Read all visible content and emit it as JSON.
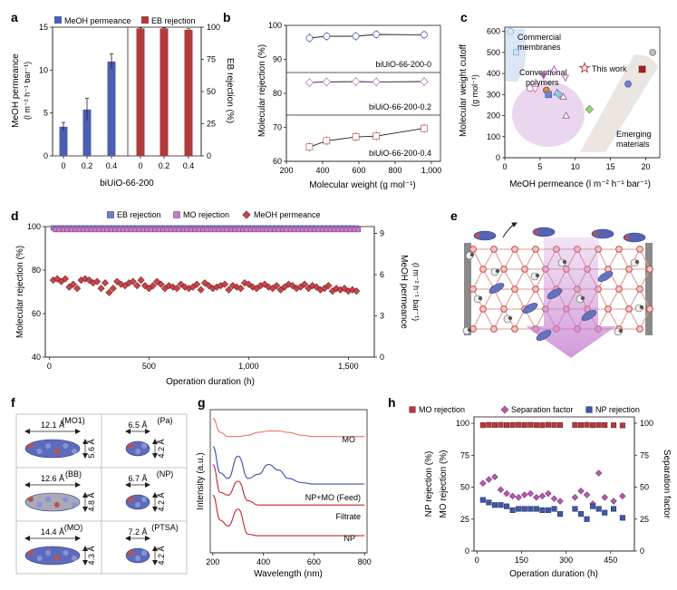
{
  "colors": {
    "blue": "#4a5fb0",
    "red": "#b03a3c",
    "purple": "#a557a6",
    "pink": "#e27b9b",
    "lavender": "#d8b9dc",
    "light_blue": "#dbe7f4",
    "axis": "#231f20"
  },
  "panels": {
    "a": "a",
    "b": "b",
    "c": "c",
    "d": "d",
    "e": "e",
    "f": "f",
    "g": "g",
    "h": "h"
  },
  "chart_data": [
    {
      "panel": "a",
      "type": "bar",
      "title": "",
      "xlabel": "biUiO-66-200",
      "ylabel": "MeOH permeance (l m⁻² h⁻¹ bar⁻¹)",
      "y2label": "EB rejection (%)",
      "legend": [
        "MeOH permeance",
        "EB rejection"
      ],
      "categories": [
        "0",
        "0.2",
        "0.4"
      ],
      "series": [
        {
          "name": "MeOH permeance",
          "values": [
            3.4,
            5.4,
            11.0
          ],
          "errors": [
            0.5,
            1.3,
            0.9
          ]
        },
        {
          "name": "EB rejection",
          "values": [
            99,
            99,
            98
          ],
          "errors": [
            0.5,
            0.5,
            0.7
          ]
        }
      ],
      "ylim": [
        0,
        15
      ],
      "yticks": [
        "0",
        "5",
        "10",
        "15"
      ],
      "y2lim": [
        0,
        100
      ],
      "y2ticks": [
        "0",
        "25",
        "50",
        "75",
        "100"
      ]
    },
    {
      "panel": "b",
      "type": "line",
      "xlabel": "Molecular weight (g mol⁻¹)",
      "ylabel": "Molecular rejection (%)",
      "xlim": [
        200,
        1050
      ],
      "xticks": [
        "200",
        "400",
        "600",
        "800",
        "1,000"
      ],
      "ylim": [
        60,
        100
      ],
      "yticks": [
        "60",
        "70",
        "80",
        "90",
        "100"
      ],
      "series": [
        {
          "name": "biUiO-66-200-0",
          "x": [
            327,
            422,
            583,
            696,
            960
          ],
          "values": [
            98.5,
            99,
            99,
            99.5,
            99.4
          ]
        },
        {
          "name": "biUiO-66-200-0.2",
          "x": [
            327,
            422,
            583,
            696,
            960
          ],
          "values": [
            99,
            99.2,
            99.3,
            99.2,
            99.3
          ]
        },
        {
          "name": "biUiO-66-200-0.4",
          "x": [
            327,
            422,
            583,
            696,
            960
          ],
          "values": [
            78,
            82,
            84.5,
            85,
            90
          ]
        }
      ]
    },
    {
      "panel": "c",
      "type": "scatter",
      "xlabel": "MeOH permeance (l m⁻² h⁻¹ bar⁻¹)",
      "ylabel": "Molecular weight cutoff (g mol⁻¹)",
      "xlim": [
        0,
        22
      ],
      "xticks": [
        "0",
        "5",
        "10",
        "15",
        "20"
      ],
      "ylim": [
        0,
        620
      ],
      "yticks": [
        "0",
        "100",
        "200",
        "300",
        "400",
        "500",
        "600"
      ],
      "annotations": [
        "Commercial membranes",
        "Conventional polymers",
        "This work",
        "Emerging materials"
      ],
      "series": [
        {
          "name": "Commercial membranes",
          "x": [
            0.8,
            1.6
          ],
          "values": [
            600,
            500
          ]
        },
        {
          "name": "Conventional polymers",
          "x": [
            3.6,
            4.3,
            5.5,
            7.0,
            8.6,
            5.9,
            6.2,
            7.4,
            7.7,
            8.3,
            8.7
          ],
          "values": [
            330,
            325,
            390,
            420,
            380,
            320,
            300,
            310,
            300,
            290,
            200
          ]
        },
        {
          "name": "Emerging materials",
          "x": [
            12.0,
            17.5,
            19.5,
            21.0
          ],
          "values": [
            230,
            350,
            420,
            500
          ]
        },
        {
          "name": "This work",
          "x": [
            10.9
          ],
          "values": [
            490
          ]
        }
      ]
    },
    {
      "panel": "d",
      "type": "scatter",
      "xlabel": "Operation duration (h)",
      "ylabel": "Molecular rejection (%)",
      "y2label": "MeOH permeance (l m⁻² h⁻¹ bar⁻¹)",
      "legend": [
        "EB rejection",
        "MO rejection",
        "MeOH permeance"
      ],
      "xlim": [
        0,
        1600
      ],
      "xticks": [
        "0",
        "500",
        "1,000",
        "1,500"
      ],
      "ylim": [
        40,
        100
      ],
      "yticks": [
        "40",
        "60",
        "80",
        "100"
      ],
      "y2lim": [
        0,
        9.5
      ],
      "y2ticks": [
        "0",
        "3",
        "6",
        "9"
      ],
      "series": [
        {
          "name": "EB rejection",
          "x": [
            20,
            1550
          ],
          "values": [
            99.5,
            99.5
          ]
        },
        {
          "name": "MO rejection",
          "x": [
            20,
            1550
          ],
          "values": [
            99.0,
            99.0
          ]
        },
        {
          "name": "MeOH permeance",
          "x": [
            20,
            40,
            60,
            80,
            100,
            120,
            140,
            160,
            180,
            200,
            220,
            240,
            260,
            280,
            300,
            320,
            340,
            360,
            380,
            400,
            420,
            440,
            460,
            480,
            500,
            520,
            540,
            560,
            580,
            600,
            620,
            640,
            660,
            680,
            700,
            720,
            740,
            760,
            780,
            800,
            820,
            840,
            860,
            880,
            900,
            920,
            940,
            960,
            980,
            1000,
            1020,
            1040,
            1060,
            1080,
            1100,
            1120,
            1140,
            1160,
            1180,
            1200,
            1220,
            1240,
            1260,
            1280,
            1300,
            1320,
            1340,
            1360,
            1380,
            1400,
            1420,
            1440,
            1460,
            1480,
            1500,
            1520,
            1540
          ],
          "values": [
            5.6,
            5.7,
            5.5,
            5.7,
            5.1,
            5.3,
            5.0,
            5.6,
            5.7,
            5.6,
            5.4,
            5.5,
            5.0,
            5.4,
            4.7,
            5.0,
            5.5,
            5.3,
            5.2,
            5.4,
            5.5,
            5.2,
            5.6,
            5.2,
            5.0,
            5.2,
            5.5,
            5.3,
            5.0,
            5.2,
            5.1,
            5.0,
            5.3,
            5.1,
            5.0,
            5.1,
            5.3,
            4.9,
            5.4,
            5.2,
            5.0,
            5.1,
            5.2,
            5.3,
            4.9,
            5.2,
            5.1,
            5.0,
            5.4,
            5.3,
            5.1,
            5.0,
            5.2,
            5.3,
            5.1,
            5.0,
            5.2,
            4.9,
            5.1,
            5.3,
            5.2,
            5.0,
            5.1,
            5.3,
            5.0,
            5.2,
            5.1,
            4.9,
            5.0,
            5.2,
            4.8,
            5.0,
            4.9,
            5.0,
            4.8,
            4.9,
            4.8
          ]
        }
      ]
    },
    {
      "panel": "g",
      "type": "line",
      "xlabel": "Wavelength (nm)",
      "ylabel": "Intensity (a.u.)",
      "xlim": [
        190,
        810
      ],
      "xticks": [
        "200",
        "400",
        "600",
        "800"
      ],
      "series": [
        {
          "name": "MO",
          "x": [
            200,
            230,
            260,
            300,
            340,
            380,
            420,
            460,
            500,
            550,
            600,
            700,
            800
          ],
          "values": [
            0.95,
            0.85,
            0.82,
            0.82,
            0.83,
            0.85,
            0.86,
            0.86,
            0.85,
            0.83,
            0.82,
            0.82,
            0.82
          ]
        },
        {
          "name": "NP+MO (Feed)",
          "x": [
            200,
            230,
            260,
            300,
            340,
            380,
            420,
            460,
            500,
            550,
            600,
            700,
            800
          ],
          "values": [
            0.75,
            0.56,
            0.52,
            0.68,
            0.52,
            0.55,
            0.62,
            0.58,
            0.52,
            0.49,
            0.48,
            0.48,
            0.48
          ]
        },
        {
          "name": "Filtrate",
          "x": [
            200,
            230,
            260,
            300,
            340,
            380,
            420,
            460,
            500,
            550,
            600,
            700,
            800
          ],
          "values": [
            0.62,
            0.42,
            0.4,
            0.5,
            0.36,
            0.33,
            0.33,
            0.33,
            0.33,
            0.33,
            0.33,
            0.33,
            0.33
          ]
        },
        {
          "name": "NP",
          "x": [
            200,
            230,
            260,
            300,
            340,
            380,
            420,
            460,
            500,
            550,
            600,
            700,
            800
          ],
          "values": [
            0.4,
            0.22,
            0.18,
            0.3,
            0.12,
            0.11,
            0.11,
            0.11,
            0.11,
            0.11,
            0.11,
            0.11,
            0.11
          ]
        }
      ]
    },
    {
      "panel": "h",
      "type": "scatter",
      "xlabel": "Operation duration (h)",
      "ylabel": "NP rejection (%)",
      "ylabel2": "MO rejection (%)",
      "y2label": "Separation factor",
      "legend": [
        "MO rejection",
        "Separation factor",
        "NP rejection"
      ],
      "xlim": [
        -10,
        530
      ],
      "xticks": [
        "0",
        "150",
        "300",
        "450"
      ],
      "ylim": [
        0,
        105
      ],
      "yticks": [
        "0",
        "25",
        "50",
        "75",
        "100"
      ],
      "y2lim": [
        0,
        105
      ],
      "y2ticks": [
        "0",
        "25",
        "50",
        "75",
        "100"
      ],
      "series": [
        {
          "name": "MO rejection",
          "x": [
            20,
            40,
            60,
            80,
            100,
            120,
            140,
            160,
            180,
            200,
            220,
            240,
            260,
            280,
            330,
            350,
            370,
            390,
            410,
            430,
            460,
            490
          ],
          "values": [
            98.5,
            98.8,
            98.7,
            98.8,
            98.6,
            98.7,
            98.8,
            98.7,
            98.8,
            98.6,
            98.5,
            98.8,
            98.7,
            98.6,
            98.7,
            98.6,
            98.8,
            98.5,
            98.7,
            98.6,
            98.5,
            98.3
          ]
        },
        {
          "name": "Separation factor",
          "x": [
            20,
            40,
            60,
            80,
            100,
            120,
            140,
            160,
            180,
            200,
            220,
            240,
            260,
            280,
            330,
            350,
            370,
            390,
            410,
            430,
            460,
            490
          ],
          "values": [
            53,
            56,
            58,
            48,
            45,
            43,
            42,
            44,
            45,
            42,
            43,
            45,
            41,
            39,
            42,
            47,
            44,
            37,
            61,
            42,
            39,
            43
          ]
        },
        {
          "name": "NP rejection",
          "x": [
            20,
            40,
            60,
            80,
            100,
            120,
            140,
            160,
            180,
            200,
            220,
            240,
            260,
            280,
            330,
            350,
            370,
            390,
            410,
            430,
            460,
            490
          ],
          "values": [
            40,
            38,
            36,
            36,
            35,
            32,
            33,
            33,
            33,
            33,
            32,
            32,
            33,
            29,
            33,
            29,
            25,
            35,
            33,
            30,
            33,
            26
          ]
        }
      ]
    }
  ],
  "panel_e": {},
  "panel_f": {
    "cells": [
      {
        "name": "MO1",
        "width": "12.1 Å",
        "height": "5.6 Å"
      },
      {
        "name": "Pa",
        "width": "6.5 Å",
        "height": "4.2 Å"
      },
      {
        "name": "BB",
        "width": "12.6 Å",
        "height": "4.8 Å"
      },
      {
        "name": "NP",
        "width": "6.7 Å",
        "height": "4.2 Å"
      },
      {
        "name": "MO",
        "width": "14.4 Å",
        "height": "4.3 Å"
      },
      {
        "name": "PTSA",
        "width": "7.2 Å",
        "height": "4.2 Å"
      }
    ]
  }
}
